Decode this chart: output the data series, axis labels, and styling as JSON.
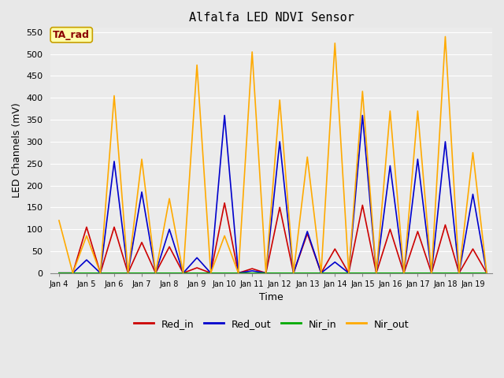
{
  "title": "Alfalfa LED NDVI Sensor",
  "xlabel": "Time",
  "ylabel": "LED Channels (mV)",
  "ylim": [
    0,
    560
  ],
  "yticks": [
    0,
    50,
    100,
    150,
    200,
    250,
    300,
    350,
    400,
    450,
    500,
    550
  ],
  "bg_color": "#e8e8e8",
  "plot_bg": "#ebebeb",
  "annotation_text": "TA_rad",
  "annotation_color": "#8B0000",
  "annotation_bg": "#ffffaa",
  "annotation_border": "#c8a000",
  "time_labels": [
    "Jan 4",
    "Jan 5",
    "Jan 6",
    "Jan 7",
    "Jan 8",
    "Jan 9",
    "Jan 10",
    "Jan 11",
    "Jan 12",
    "Jan 13",
    "Jan 14",
    "Jan 15",
    "Jan 16",
    "Jan 17",
    "Jan 18",
    "Jan 19"
  ],
  "x_values": [
    0,
    0.5,
    1,
    1.5,
    2,
    2.5,
    3,
    3.5,
    4,
    4.5,
    5,
    5.5,
    6,
    6.5,
    7,
    7.5,
    8,
    8.5,
    9,
    9.5,
    10,
    10.5,
    11,
    11.5,
    12,
    12.5,
    13,
    13.5,
    14,
    14.5,
    15,
    15.5
  ],
  "xtick_pos": [
    0,
    1,
    2,
    3,
    4,
    5,
    6,
    7,
    8,
    9,
    10,
    11,
    12,
    13,
    14,
    15
  ],
  "Red_in": [
    0,
    0,
    105,
    0,
    105,
    0,
    70,
    0,
    60,
    0,
    12,
    0,
    160,
    0,
    10,
    0,
    150,
    0,
    90,
    0,
    55,
    0,
    155,
    0,
    100,
    0,
    95,
    0,
    110,
    0,
    55,
    0
  ],
  "Red_out": [
    0,
    0,
    30,
    0,
    255,
    0,
    185,
    0,
    100,
    0,
    35,
    0,
    360,
    0,
    5,
    0,
    300,
    0,
    95,
    0,
    25,
    0,
    360,
    0,
    245,
    0,
    260,
    0,
    300,
    0,
    180,
    0
  ],
  "Nir_in": [
    0,
    0,
    0,
    0,
    0,
    0,
    0,
    0,
    0,
    0,
    0,
    0,
    0,
    0,
    0,
    0,
    0,
    0,
    0,
    0,
    0,
    0,
    0,
    0,
    0,
    0,
    0,
    0,
    0,
    0,
    0,
    0
  ],
  "Nir_out": [
    120,
    0,
    85,
    0,
    405,
    0,
    260,
    0,
    170,
    0,
    475,
    0,
    85,
    0,
    505,
    0,
    395,
    0,
    265,
    0,
    525,
    0,
    415,
    0,
    370,
    0,
    370,
    0,
    540,
    0,
    275,
    0
  ],
  "colors": {
    "Red_in": "#cc0000",
    "Red_out": "#0000cc",
    "Nir_in": "#00aa00",
    "Nir_out": "#ffaa00"
  },
  "legend_labels": [
    "Red_in",
    "Red_out",
    "Nir_in",
    "Nir_out"
  ]
}
